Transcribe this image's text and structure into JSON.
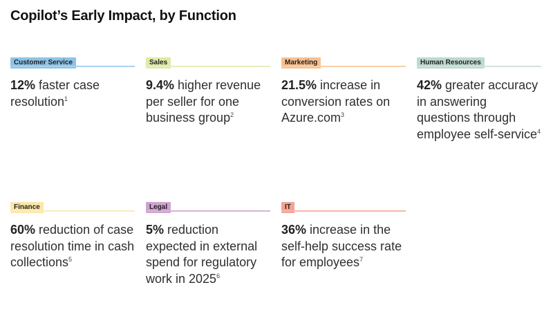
{
  "title": "Copilot’s Early Impact, by Function",
  "cards": [
    {
      "tag": "Customer Service",
      "color": "#8ec3e6",
      "line": "#a9d0ee",
      "value": "12%",
      "text": " faster case resolution",
      "ref": "1"
    },
    {
      "tag": "Sales",
      "color": "#dfeaa6",
      "line": "#e5eebc",
      "value": "9.4%",
      "text": " higher revenue per seller for one business group",
      "ref": "2"
    },
    {
      "tag": "Marketing",
      "color": "#f8c08f",
      "line": "#f9cfa6",
      "value": "21.5%",
      "text": " increase in conversion rates on Azure.com",
      "ref": "3"
    },
    {
      "tag": "Human Resources",
      "color": "#bcd9cf",
      "line": "#cfe3dc",
      "value": "42%",
      "text": " greater accuracy in answering questions through employee self-service",
      "ref": "4"
    },
    {
      "tag": "Finance",
      "color": "#fbe7a9",
      "line": "#fcecbb",
      "value": "60%",
      "text": " reduction of case resolution time in cash collections",
      "ref": "5"
    },
    {
      "tag": "Legal",
      "color": "#cfa3cf",
      "line": "#d7b2d7",
      "value": "5%",
      "text": " reduction expected in external spend for regulatory work in 2025",
      "ref": "6"
    },
    {
      "tag": "IT",
      "color": "#f4a293",
      "line": "#f6b5a8",
      "value": "36%",
      "text": " increase in the self-help success rate for employees",
      "ref": "7"
    }
  ]
}
